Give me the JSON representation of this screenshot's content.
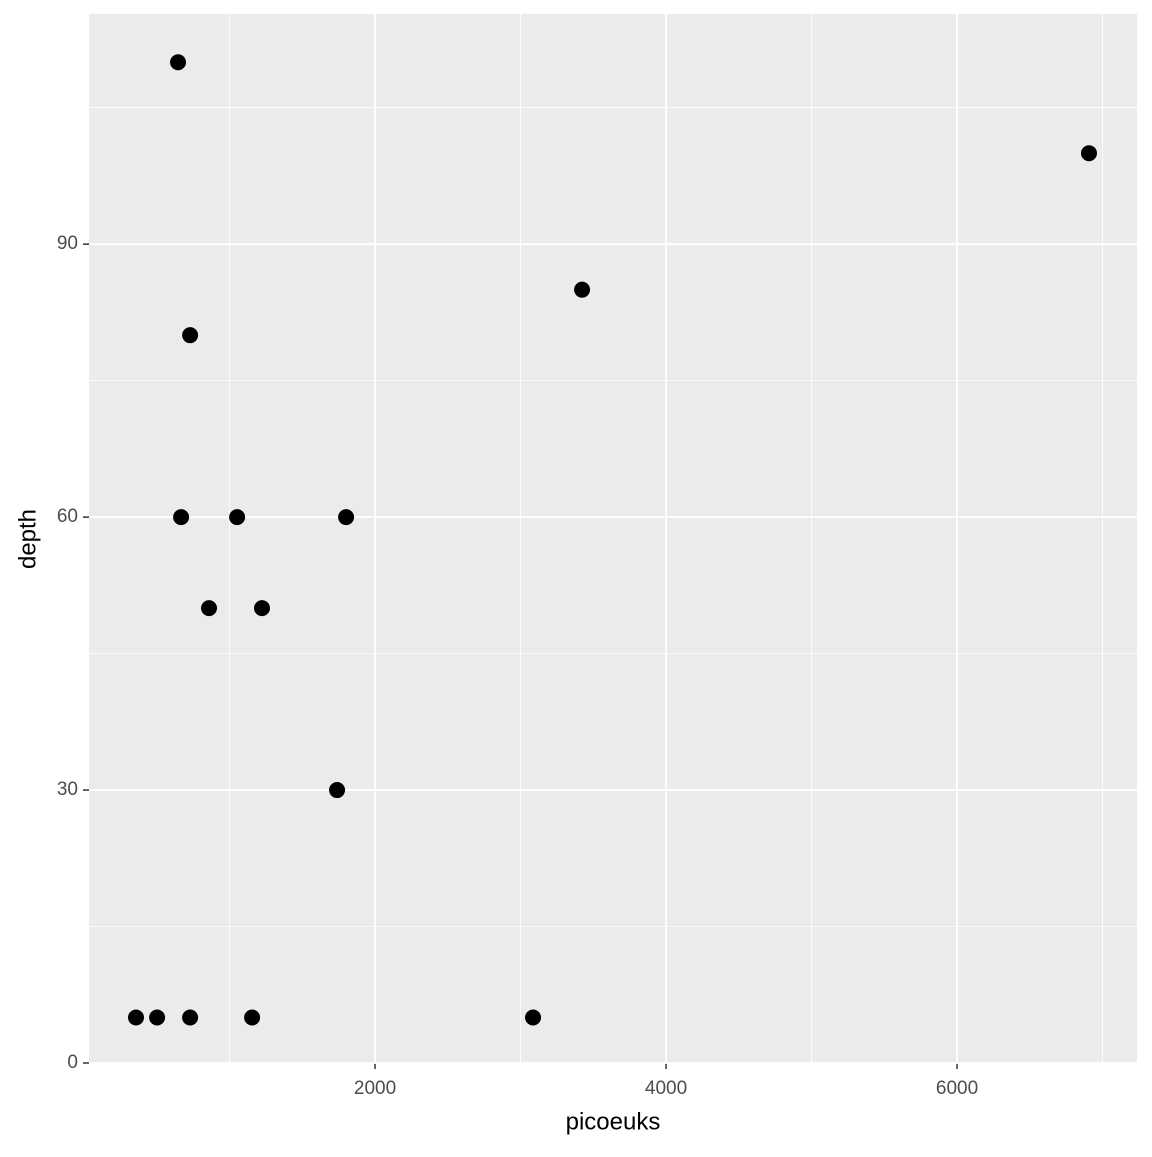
{
  "chart_data": {
    "type": "scatter",
    "x_label": "picoeuks",
    "y_label": "depth",
    "x": [
      646,
      729,
      667,
      1052,
      1801,
      859,
      1223,
      1739,
      357,
      502,
      729,
      1155,
      3086,
      3423,
      6907
    ],
    "series": [
      {
        "color": "#000000",
        "values": [
          110,
          80,
          60,
          60,
          60,
          50,
          50,
          30,
          5,
          5,
          5,
          5,
          5,
          85,
          100
        ]
      }
    ],
    "xlim": [
      34,
      7237
    ],
    "ylim": [
      0,
      115.3
    ],
    "xticks": [
      2000,
      4000,
      6000
    ],
    "yticks": [
      0,
      30,
      60,
      90
    ],
    "grid": true,
    "background": "#ebebeb"
  }
}
